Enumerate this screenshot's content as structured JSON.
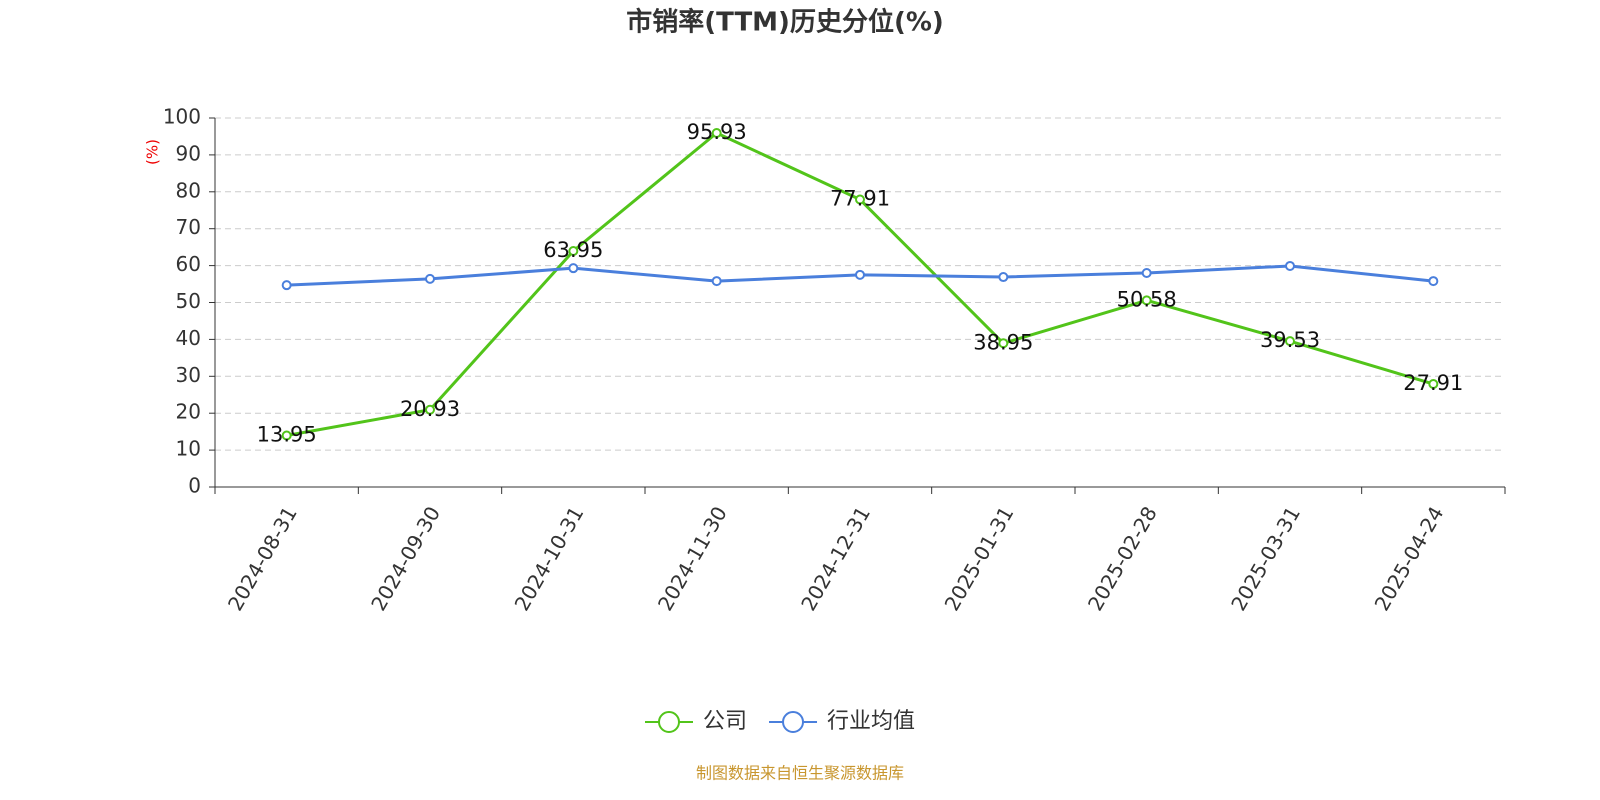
{
  "chart_data": {
    "type": "line",
    "title": "市销率(TTM)历史分位(%)",
    "y_label": "(%)",
    "categories": [
      "2024-08-31",
      "2024-09-30",
      "2024-10-31",
      "2024-11-30",
      "2024-12-31",
      "2025-01-31",
      "2025-02-28",
      "2025-03-31",
      "2025-04-24"
    ],
    "series": [
      {
        "name": "公司",
        "color": "#52c41a",
        "show_labels": true,
        "values": [
          13.95,
          20.93,
          63.95,
          95.93,
          77.91,
          38.95,
          50.58,
          39.53,
          27.91
        ]
      },
      {
        "name": "行业均值",
        "color": "#4a7fdc",
        "show_labels": false,
        "values": [
          54.7,
          56.4,
          59.3,
          55.8,
          57.5,
          56.9,
          58.0,
          59.9,
          55.8
        ]
      }
    ],
    "ylim": [
      0,
      100
    ],
    "yticks": [
      0,
      10,
      20,
      30,
      40,
      50,
      60,
      70,
      80,
      90,
      100
    ],
    "grid": true,
    "legend": "bottom",
    "source": "制图数据来自恒生聚源数据库"
  }
}
